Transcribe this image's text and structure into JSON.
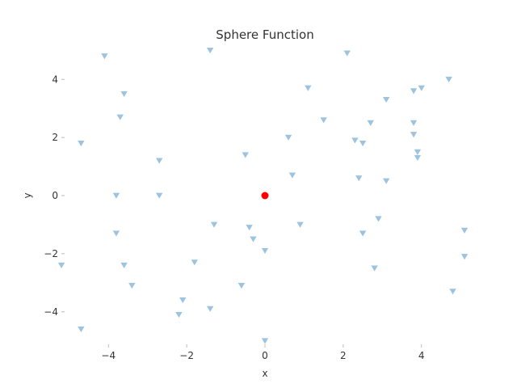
{
  "chart_data": {
    "type": "scatter",
    "title": "Sphere Function",
    "xlabel": "x",
    "ylabel": "y",
    "xlim": [
      -5.12,
      5.12
    ],
    "ylim": [
      -5.12,
      5.12
    ],
    "xticks": [
      -4,
      -2,
      0,
      2,
      4
    ],
    "yticks": [
      -4,
      -2,
      0,
      2,
      4
    ],
    "xtick_labels": [
      "−4",
      "−2",
      "0",
      "2",
      "4"
    ],
    "ytick_labels": [
      "−4",
      "−2",
      "0",
      "2",
      "4"
    ],
    "grid": false,
    "series": [
      {
        "marker": "triangle-down",
        "color": "#9ec3df",
        "points": [
          [
            -4.1,
            4.8
          ],
          [
            -1.4,
            5.0
          ],
          [
            2.1,
            4.9
          ],
          [
            4.7,
            4.0
          ],
          [
            -3.6,
            3.5
          ],
          [
            1.1,
            3.7
          ],
          [
            3.1,
            3.3
          ],
          [
            3.8,
            3.6
          ],
          [
            4.0,
            3.7
          ],
          [
            -3.7,
            2.7
          ],
          [
            1.5,
            2.6
          ],
          [
            2.7,
            2.5
          ],
          [
            3.8,
            2.5
          ],
          [
            3.8,
            2.1
          ],
          [
            -4.7,
            1.8
          ],
          [
            0.6,
            2.0
          ],
          [
            2.3,
            1.9
          ],
          [
            2.5,
            1.8
          ],
          [
            3.9,
            1.5
          ],
          [
            3.9,
            1.3
          ],
          [
            -2.7,
            1.2
          ],
          [
            -0.5,
            1.4
          ],
          [
            0.7,
            0.7
          ],
          [
            2.4,
            0.6
          ],
          [
            3.1,
            0.5
          ],
          [
            -3.8,
            0.0
          ],
          [
            -2.7,
            0.0
          ],
          [
            -3.8,
            -1.3
          ],
          [
            -1.3,
            -1.0
          ],
          [
            -0.4,
            -1.1
          ],
          [
            0.9,
            -1.0
          ],
          [
            2.9,
            -0.8
          ],
          [
            2.5,
            -1.3
          ],
          [
            -0.3,
            -1.5
          ],
          [
            5.1,
            -1.2
          ],
          [
            -5.2,
            -2.4
          ],
          [
            -3.6,
            -2.4
          ],
          [
            -1.8,
            -2.3
          ],
          [
            0.0,
            -1.9
          ],
          [
            2.8,
            -2.5
          ],
          [
            5.1,
            -2.1
          ],
          [
            -3.4,
            -3.1
          ],
          [
            -0.6,
            -3.1
          ],
          [
            4.8,
            -3.3
          ],
          [
            -2.1,
            -3.6
          ],
          [
            -1.4,
            -3.9
          ],
          [
            -2.2,
            -4.1
          ],
          [
            -4.7,
            -4.6
          ],
          [
            0.0,
            -5.0
          ]
        ]
      },
      {
        "marker": "circle",
        "color": "#ff0000",
        "points": [
          [
            0,
            0
          ]
        ]
      }
    ]
  }
}
